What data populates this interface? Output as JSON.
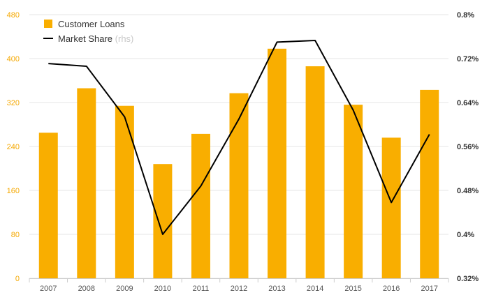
{
  "chart_data": {
    "type": "bar+line",
    "categories": [
      "2007",
      "2008",
      "2009",
      "2010",
      "2011",
      "2012",
      "2013",
      "2014",
      "2015",
      "2016",
      "2017"
    ],
    "series": [
      {
        "name": "Customer Loans",
        "type": "bar",
        "axis": "left",
        "values": [
          265,
          346,
          314,
          208,
          263,
          337,
          418,
          386,
          316,
          256,
          343
        ]
      },
      {
        "name": "Market Share",
        "name_suffix": "(rhs)",
        "type": "line",
        "axis": "right",
        "values": [
          0.711,
          0.706,
          0.614,
          0.4,
          0.488,
          0.61,
          0.75,
          0.753,
          0.626,
          0.458,
          0.582
        ]
      }
    ],
    "left_axis": {
      "ylim": [
        0,
        480
      ],
      "ticks": [
        "480",
        "400",
        "320",
        "240",
        "160",
        "80",
        "0"
      ]
    },
    "right_axis": {
      "ylim": [
        0.32,
        0.8
      ],
      "ticks": [
        "0.8%",
        "0.72%",
        "0.64%",
        "0.56%",
        "0.48%",
        "0.4%",
        "0.32%"
      ]
    },
    "grid": true,
    "legend_position": "top-left",
    "colors": {
      "bar": "#f9ae00",
      "line": "#000000",
      "grid": "#e6e6e6",
      "left_tick": "#f5a800"
    }
  }
}
